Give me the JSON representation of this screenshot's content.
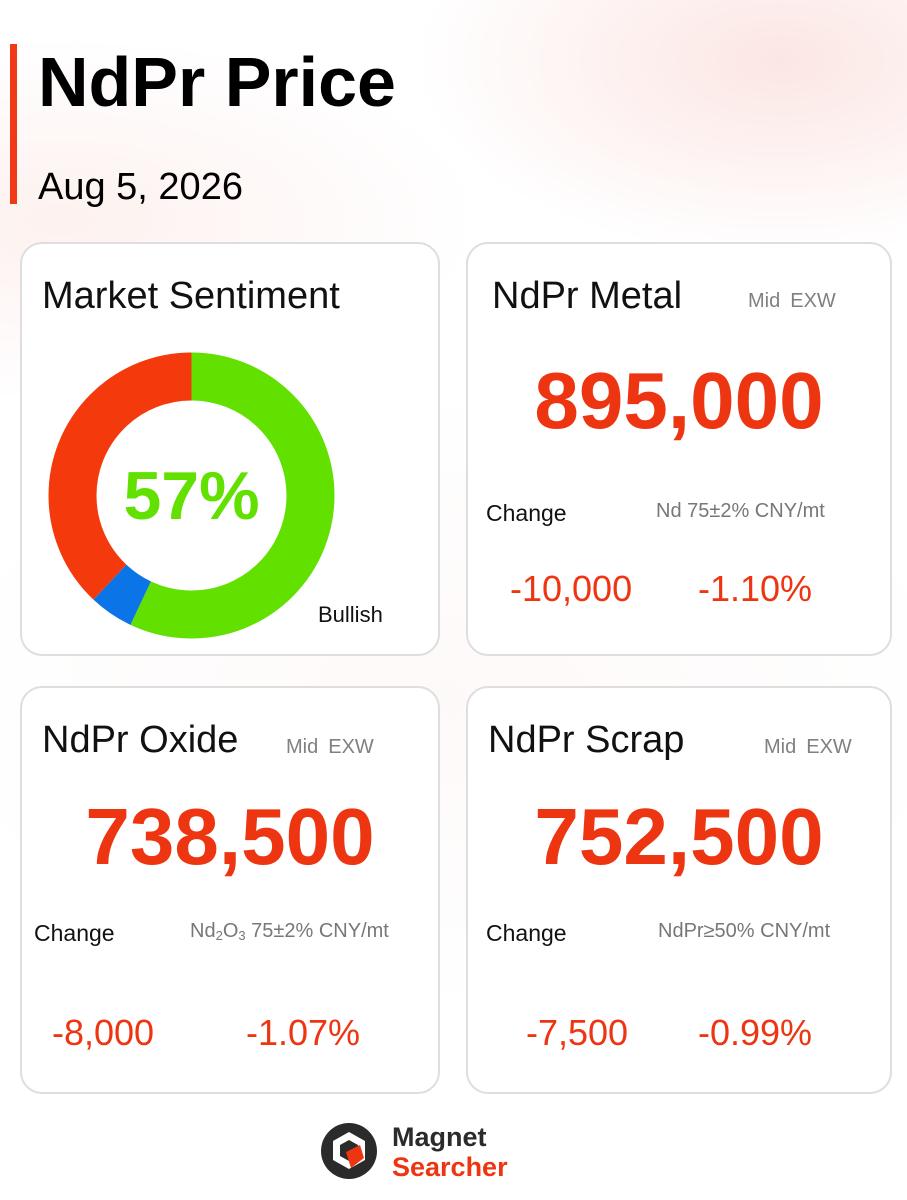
{
  "header": {
    "title": "NdPr Price",
    "date": "Aug 5, 2026",
    "accent_color": "#f03a17"
  },
  "sentiment": {
    "title": "Market Sentiment",
    "value_text": "57%",
    "label": "Bullish",
    "segments": [
      {
        "name": "bullish",
        "fraction": 0.57,
        "color": "#62e000"
      },
      {
        "name": "neutral",
        "fraction": 0.05,
        "color": "#0b74e6"
      },
      {
        "name": "bearish",
        "fraction": 0.38,
        "color": "#f43a0c"
      }
    ]
  },
  "metal": {
    "title": "NdPr Metal",
    "tag1": "Mid",
    "tag2": "EXW",
    "price": "895,000",
    "change_label": "Change",
    "spec": "Nd 75±2% CNY/mt",
    "change_abs": "-10,000",
    "change_pct": "-1.10%"
  },
  "oxide": {
    "title": "NdPr Oxide",
    "tag1": "Mid",
    "tag2": "EXW",
    "price": "738,500",
    "change_label": "Change",
    "spec_prefix": "Nd",
    "spec_sub1": "2",
    "spec_mid": "O",
    "spec_sub2": "3",
    "spec_suffix": " 75±2% CNY/mt",
    "change_abs": "-8,000",
    "change_pct": "-1.07%"
  },
  "scrap": {
    "title": "NdPr Scrap",
    "tag1": "Mid",
    "tag2": "EXW",
    "price": "752,500",
    "change_label": "Change",
    "spec": "NdPr≥50% CNY/mt",
    "change_abs": "-7,500",
    "change_pct": "-0.99%"
  },
  "brand": {
    "line1": "Magnet",
    "line2": "Searcher",
    "primary_color": "#ee3511",
    "dark_color": "#2b2b2b"
  }
}
